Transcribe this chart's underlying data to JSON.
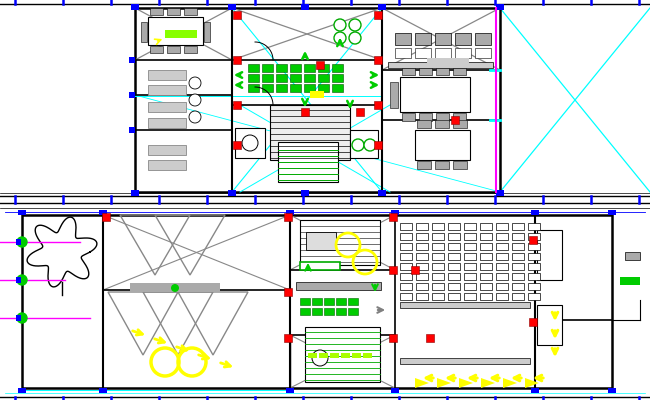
{
  "white": "#ffffff",
  "black": "#000000",
  "gray": "#888888",
  "dark_gray": "#444444",
  "light_gray": "#cccccc",
  "med_gray": "#aaaaaa",
  "green": "#00bb00",
  "dkgreen": "#006600",
  "red": "#dd0000",
  "blue": "#0000cc",
  "cyan": "#00cccc",
  "yellow": "#ffff00",
  "magenta": "#ff00ff",
  "figsize": [
    6.5,
    4.0
  ],
  "dpi": 100
}
